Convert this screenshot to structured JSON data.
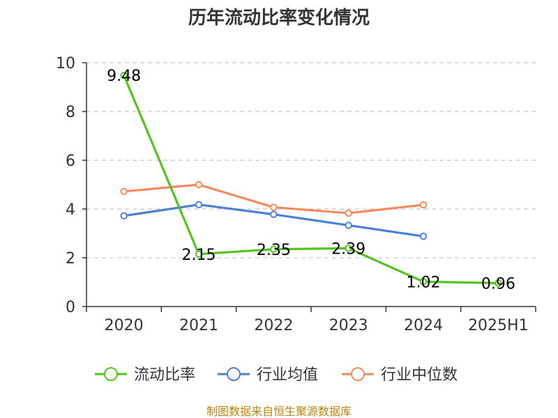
{
  "chart_data": {
    "type": "line",
    "title": "历年流动比率变化情况",
    "categories": [
      "2020",
      "2021",
      "2022",
      "2023",
      "2024",
      "2025H1"
    ],
    "ylim": [
      0,
      10
    ],
    "y_ticks": [
      0,
      2,
      4,
      6,
      8,
      10
    ],
    "grid": "horizontal dashed",
    "legend_position": "bottom",
    "series": [
      {
        "name": "流动比率",
        "color": "#52c41a",
        "values": [
          9.48,
          2.15,
          2.35,
          2.39,
          1.02,
          0.96
        ],
        "data_labels": [
          "9.48",
          "2.15",
          "2.35",
          "2.39",
          "1.02",
          "0.96"
        ]
      },
      {
        "name": "行业均值",
        "color": "#4a7fd8",
        "values": [
          3.72,
          4.18,
          3.78,
          3.33,
          2.88,
          null
        ]
      },
      {
        "name": "行业中位数",
        "color": "#f5895a",
        "values": [
          4.72,
          5.0,
          4.07,
          3.83,
          4.17,
          null
        ]
      }
    ],
    "source": "制图数据来自恒生聚源数据库"
  }
}
